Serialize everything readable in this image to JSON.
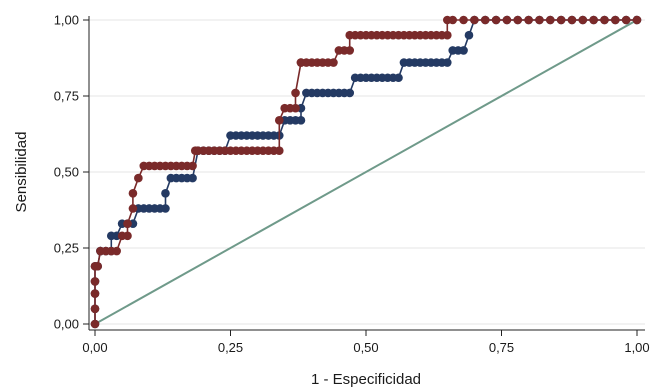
{
  "chart_data": {
    "type": "line",
    "xlabel": "1 - Especificidad",
    "ylabel": "Sensibilidad",
    "xlim": [
      0,
      1
    ],
    "ylim": [
      0,
      1
    ],
    "x_ticks": [
      {
        "value": 0,
        "label": "0,00"
      },
      {
        "value": 0.25,
        "label": "0,25"
      },
      {
        "value": 0.5,
        "label": "0,50"
      },
      {
        "value": 0.75,
        "label": "0,75"
      },
      {
        "value": 1,
        "label": "1,00"
      }
    ],
    "y_ticks": [
      {
        "value": 0,
        "label": "0,00"
      },
      {
        "value": 0.25,
        "label": "0,25"
      },
      {
        "value": 0.5,
        "label": "0,50"
      },
      {
        "value": 0.75,
        "label": "0,75"
      },
      {
        "value": 1,
        "label": "1,00"
      }
    ],
    "grid": "horizontal",
    "reference_line": {
      "x": [
        0,
        1
      ],
      "y": [
        0,
        1
      ],
      "color": "#6f9a8a"
    },
    "series": [
      {
        "color": "#243a63",
        "marker": "circle",
        "x": [
          0.0,
          0.0,
          0.0,
          0.0,
          0.0,
          0.005,
          0.01,
          0.01,
          0.02,
          0.03,
          0.03,
          0.04,
          0.05,
          0.06,
          0.07,
          0.08,
          0.09,
          0.1,
          0.11,
          0.12,
          0.13,
          0.13,
          0.14,
          0.15,
          0.16,
          0.17,
          0.18,
          0.19,
          0.2,
          0.21,
          0.22,
          0.23,
          0.24,
          0.25,
          0.26,
          0.27,
          0.28,
          0.29,
          0.3,
          0.31,
          0.32,
          0.33,
          0.34,
          0.35,
          0.36,
          0.37,
          0.38,
          0.38,
          0.39,
          0.4,
          0.41,
          0.42,
          0.43,
          0.44,
          0.45,
          0.46,
          0.47,
          0.48,
          0.49,
          0.5,
          0.51,
          0.52,
          0.53,
          0.54,
          0.55,
          0.56,
          0.57,
          0.58,
          0.59,
          0.6,
          0.61,
          0.62,
          0.63,
          0.64,
          0.65,
          0.66,
          0.67,
          0.68,
          0.69,
          0.7,
          0.72,
          0.74,
          0.76,
          0.78,
          0.8,
          0.82,
          0.84,
          0.86,
          0.88,
          0.9,
          0.92,
          0.94,
          0.96,
          0.98,
          1.0
        ],
        "y": [
          0.0,
          0.05,
          0.1,
          0.14,
          0.19,
          0.19,
          0.24,
          0.24,
          0.24,
          0.24,
          0.29,
          0.29,
          0.33,
          0.33,
          0.33,
          0.38,
          0.38,
          0.38,
          0.38,
          0.38,
          0.38,
          0.43,
          0.48,
          0.48,
          0.48,
          0.48,
          0.48,
          0.57,
          0.57,
          0.57,
          0.57,
          0.57,
          0.57,
          0.62,
          0.62,
          0.62,
          0.62,
          0.62,
          0.62,
          0.62,
          0.62,
          0.62,
          0.62,
          0.67,
          0.67,
          0.67,
          0.67,
          0.71,
          0.76,
          0.76,
          0.76,
          0.76,
          0.76,
          0.76,
          0.76,
          0.76,
          0.76,
          0.81,
          0.81,
          0.81,
          0.81,
          0.81,
          0.81,
          0.81,
          0.81,
          0.81,
          0.86,
          0.86,
          0.86,
          0.86,
          0.86,
          0.86,
          0.86,
          0.86,
          0.86,
          0.9,
          0.9,
          0.9,
          0.95,
          1.0,
          1.0,
          1.0,
          1.0,
          1.0,
          1.0,
          1.0,
          1.0,
          1.0,
          1.0,
          1.0,
          1.0,
          1.0,
          1.0,
          1.0,
          1.0
        ]
      },
      {
        "color": "#7a2a2a",
        "marker": "circle",
        "x": [
          0.0,
          0.0,
          0.0,
          0.0,
          0.0,
          0.005,
          0.01,
          0.02,
          0.03,
          0.04,
          0.05,
          0.06,
          0.06,
          0.07,
          0.07,
          0.08,
          0.09,
          0.1,
          0.11,
          0.12,
          0.13,
          0.14,
          0.15,
          0.16,
          0.17,
          0.18,
          0.185,
          0.19,
          0.2,
          0.21,
          0.22,
          0.23,
          0.24,
          0.25,
          0.26,
          0.27,
          0.28,
          0.29,
          0.3,
          0.31,
          0.32,
          0.33,
          0.34,
          0.34,
          0.35,
          0.36,
          0.37,
          0.37,
          0.38,
          0.38,
          0.39,
          0.4,
          0.41,
          0.42,
          0.43,
          0.44,
          0.45,
          0.46,
          0.47,
          0.47,
          0.48,
          0.49,
          0.5,
          0.51,
          0.52,
          0.53,
          0.54,
          0.55,
          0.56,
          0.57,
          0.58,
          0.59,
          0.6,
          0.61,
          0.62,
          0.63,
          0.64,
          0.65,
          0.65,
          0.66,
          0.68,
          0.7,
          0.72,
          0.74,
          0.76,
          0.78,
          0.8,
          0.82,
          0.84,
          0.86,
          0.88,
          0.9,
          0.92,
          0.94,
          0.96,
          0.98,
          1.0
        ],
        "y": [
          0.0,
          0.05,
          0.1,
          0.14,
          0.19,
          0.19,
          0.24,
          0.24,
          0.24,
          0.24,
          0.29,
          0.29,
          0.33,
          0.38,
          0.43,
          0.48,
          0.52,
          0.52,
          0.52,
          0.52,
          0.52,
          0.52,
          0.52,
          0.52,
          0.52,
          0.52,
          0.57,
          0.57,
          0.57,
          0.57,
          0.57,
          0.57,
          0.57,
          0.57,
          0.57,
          0.57,
          0.57,
          0.57,
          0.57,
          0.57,
          0.57,
          0.57,
          0.57,
          0.67,
          0.71,
          0.71,
          0.71,
          0.76,
          0.86,
          0.86,
          0.86,
          0.86,
          0.86,
          0.86,
          0.86,
          0.86,
          0.9,
          0.9,
          0.9,
          0.95,
          0.95,
          0.95,
          0.95,
          0.95,
          0.95,
          0.95,
          0.95,
          0.95,
          0.95,
          0.95,
          0.95,
          0.95,
          0.95,
          0.95,
          0.95,
          0.95,
          0.95,
          0.95,
          1.0,
          1.0,
          1.0,
          1.0,
          1.0,
          1.0,
          1.0,
          1.0,
          1.0,
          1.0,
          1.0,
          1.0,
          1.0,
          1.0,
          1.0,
          1.0,
          1.0,
          1.0,
          1.0
        ]
      }
    ]
  }
}
